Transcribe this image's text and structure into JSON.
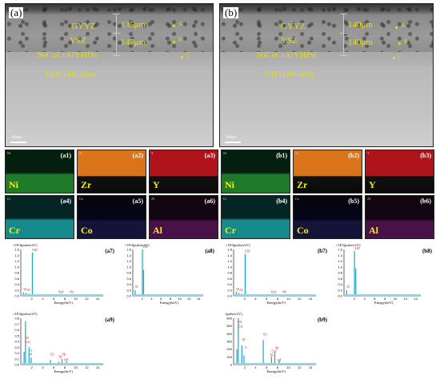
{
  "panels": {
    "a": {
      "label": "(a)",
      "gyyz": "GYYZ",
      "ysz": "YSZ",
      "bond": "NiCoCrAlYHfSi",
      "alloy": "GH5188-alloy",
      "t1": "135μm",
      "t2": "147μm",
      "pA": "A",
      "pB": "B",
      "pC": "C",
      "scale": "100μm"
    },
    "b": {
      "label": "(b)",
      "gyyz": "GYYZ",
      "ysz": "YSZ",
      "bond": "NiCoCrAlYHfSi",
      "alloy": "GH5188-alloy",
      "t1": "140μm",
      "t2": "140μm",
      "pA": "A",
      "pB": "B",
      "pC": "C",
      "scale": "100μm"
    }
  },
  "maps": [
    {
      "id": "a1",
      "el": "Ni",
      "tag": "(a1)",
      "small": "Ni",
      "color": "#1f7a2a"
    },
    {
      "id": "a2",
      "el": "Zr",
      "tag": "(a2)",
      "small": "Zr",
      "color": "#d9741a"
    },
    {
      "id": "a3",
      "el": "Y",
      "tag": "(a3)",
      "small": "Y",
      "color": "#b0141a"
    },
    {
      "id": "a4",
      "el": "Cr",
      "tag": "(a4)",
      "small": "Cr",
      "color": "#168a8c"
    },
    {
      "id": "a5",
      "el": "Co",
      "tag": "(a5)",
      "small": "Co",
      "color": "#12122a"
    },
    {
      "id": "a6",
      "el": "Al",
      "tag": "(a6)",
      "small": "Al",
      "color": "#4a1048"
    },
    {
      "id": "b1",
      "el": "Ni",
      "tag": "(b1)",
      "small": "Ni",
      "color": "#1f7a2a"
    },
    {
      "id": "b2",
      "el": "Zr",
      "tag": "(b2)",
      "small": "Zr",
      "color": "#d9741a"
    },
    {
      "id": "b3",
      "el": "Y",
      "tag": "(b3)",
      "small": "Y",
      "color": "#b0141a"
    },
    {
      "id": "b4",
      "el": "Cr",
      "tag": "(b4)",
      "small": "Cr",
      "color": "#168a8c"
    },
    {
      "id": "b5",
      "el": "Co",
      "tag": "(b5)",
      "small": "Co",
      "color": "#12122a"
    },
    {
      "id": "b6",
      "el": "Al",
      "tag": "(b6)",
      "small": "Al",
      "color": "#4a1048"
    }
  ],
  "spectra": [
    {
      "id": "a7",
      "tag": "(a7)",
      "title": "×1E3(pulses/eV)",
      "xlabel": "Energy(keV)",
      "yticks": [
        "0.0",
        "0.2",
        "0.4",
        "0.6",
        "0.8",
        "1.0",
        "1.2",
        "1.4",
        "1.6"
      ],
      "xticks": [
        "2",
        "4",
        "6",
        "8",
        "10",
        "12",
        "14"
      ],
      "peaks": [
        {
          "x": 0.5,
          "y": 0.12
        },
        {
          "x": 0.9,
          "y": 0.1
        },
        {
          "x": 1.5,
          "y": 0.07
        },
        {
          "x": 2.1,
          "y": 1.5
        },
        {
          "x": 6.9,
          "y": 0.05
        },
        {
          "x": 8.8,
          "y": 0.04
        }
      ],
      "labels": [
        {
          "t": "YZr",
          "x": 2.0,
          "y": 1.55
        },
        {
          "t": "O",
          "x": 0.5,
          "y": 0.2
        },
        {
          "t": "Al",
          "x": 1.1,
          "y": 0.16
        },
        {
          "t": "Gd",
          "x": 6.8,
          "y": 0.1
        },
        {
          "t": "Yb",
          "x": 8.8,
          "y": 0.1
        }
      ]
    },
    {
      "id": "a8",
      "tag": "(a8)",
      "title": "×1E3(pulses/eV)",
      "xlabel": "Energy(keV)",
      "yticks": [
        "0.0",
        "0.2",
        "0.4",
        "0.6",
        "0.8",
        "1.0",
        "1.2",
        "1.4",
        "1.6"
      ],
      "xticks": [
        "2",
        "4",
        "6",
        "8",
        "10",
        "12",
        "14"
      ],
      "peaks": [
        {
          "x": 0.5,
          "y": 0.2
        },
        {
          "x": 2.05,
          "y": 1.6
        },
        {
          "x": 2.3,
          "y": 0.9
        }
      ],
      "labels": [
        {
          "t": "YZr",
          "x": 2.0,
          "y": 1.65
        },
        {
          "t": "O",
          "x": 0.5,
          "y": 0.28
        }
      ]
    },
    {
      "id": "a9",
      "tag": "(a9)",
      "title": "×1E3(pulses/eV)",
      "xlabel": "Energy(keV)",
      "yticks": [
        "0.0",
        "0.1",
        "0.2",
        "0.3",
        "0.4",
        "0.5",
        "0.6",
        "0.7",
        "0.8"
      ],
      "xticks": [
        "2",
        "4",
        "6",
        "8",
        "10",
        "12",
        "14"
      ],
      "peaks": [
        {
          "x": 0.6,
          "y": 0.22
        },
        {
          "x": 0.85,
          "y": 0.75
        },
        {
          "x": 1.5,
          "y": 0.3
        },
        {
          "x": 1.9,
          "y": 0.12
        },
        {
          "x": 5.4,
          "y": 0.08
        },
        {
          "x": 6.9,
          "y": 0.05
        },
        {
          "x": 7.5,
          "y": 0.1
        },
        {
          "x": 8.3,
          "y": 0.06
        }
      ],
      "labels": [
        {
          "t": "Ni",
          "x": 0.8,
          "y": 0.44
        },
        {
          "t": "Co",
          "x": 0.8,
          "y": 0.37
        },
        {
          "t": "Y",
          "x": 1.7,
          "y": 0.22
        },
        {
          "t": "Al",
          "x": 1.5,
          "y": 0.16
        },
        {
          "t": "Cr",
          "x": 5.4,
          "y": 0.16
        },
        {
          "t": "Si",
          "x": 6.9,
          "y": 0.12
        },
        {
          "t": "Ni",
          "x": 7.6,
          "y": 0.16
        },
        {
          "t": "Hf",
          "x": 7.9,
          "y": 0.06
        }
      ]
    },
    {
      "id": "b7",
      "tag": "(b7)",
      "title": "×1E3(pulses/eV)",
      "xlabel": "Energy(keV)",
      "yticks": [
        "0.0",
        "0.2",
        "0.4",
        "0.6",
        "0.8",
        "1.0",
        "1.2",
        "1.4",
        "1.6"
      ],
      "xticks": [
        "2",
        "4",
        "6",
        "8",
        "10",
        "12",
        "14"
      ],
      "peaks": [
        {
          "x": 0.5,
          "y": 0.14
        },
        {
          "x": 0.9,
          "y": 0.1
        },
        {
          "x": 1.5,
          "y": 0.07
        },
        {
          "x": 2.1,
          "y": 1.45
        },
        {
          "x": 6.9,
          "y": 0.05
        },
        {
          "x": 8.8,
          "y": 0.04
        }
      ],
      "labels": [
        {
          "t": "YZr",
          "x": 2.0,
          "y": 1.5
        },
        {
          "t": "O",
          "x": 0.5,
          "y": 0.2
        },
        {
          "t": "Al",
          "x": 1.1,
          "y": 0.16
        },
        {
          "t": "Gd",
          "x": 6.8,
          "y": 0.1
        },
        {
          "t": "Yb",
          "x": 8.8,
          "y": 0.1
        }
      ]
    },
    {
      "id": "b8",
      "tag": "(b8)",
      "title": "×1E3(pulses/eV)",
      "xlabel": "Energy(keV)",
      "yticks": [
        "0.0",
        "0.2",
        "0.4",
        "0.6",
        "0.8",
        "1.0",
        "1.2",
        "1.4",
        "1.6"
      ],
      "xticks": [
        "2",
        "4",
        "6",
        "8",
        "10",
        "12",
        "14"
      ],
      "peaks": [
        {
          "x": 0.5,
          "y": 0.2
        },
        {
          "x": 2.05,
          "y": 1.55
        },
        {
          "x": 2.3,
          "y": 0.95
        }
      ],
      "labels": [
        {
          "t": "YZr",
          "x": 2.0,
          "y": 1.6
        },
        {
          "t": "O",
          "x": 0.5,
          "y": 0.28
        }
      ]
    },
    {
      "id": "b9",
      "tag": "(b9)",
      "title": "(pulses/eV)",
      "xlabel": "Energy(keV)",
      "yticks": [
        "0",
        "100",
        "200",
        "300",
        "400",
        "500",
        "600"
      ],
      "xticks": [
        "2",
        "4",
        "6",
        "8",
        "10",
        "12",
        "14"
      ],
      "peaks": [
        {
          "x": 0.6,
          "y": 200
        },
        {
          "x": 0.85,
          "y": 600
        },
        {
          "x": 1.5,
          "y": 250
        },
        {
          "x": 1.9,
          "y": 120
        },
        {
          "x": 5.4,
          "y": 320
        },
        {
          "x": 6.9,
          "y": 100
        },
        {
          "x": 7.5,
          "y": 160
        },
        {
          "x": 8.3,
          "y": 50
        }
      ],
      "labels": [
        {
          "t": "Ni",
          "x": 0.8,
          "y": 540
        },
        {
          "t": "Co",
          "x": 0.8,
          "y": 480
        },
        {
          "t": "Al",
          "x": 1.5,
          "y": 310
        },
        {
          "t": "Y",
          "x": 2.0,
          "y": 200
        },
        {
          "t": "Cr",
          "x": 5.4,
          "y": 380
        },
        {
          "t": "Co",
          "x": 6.9,
          "y": 160
        },
        {
          "t": "Si",
          "x": 6.6,
          "y": 110
        },
        {
          "t": "Ni",
          "x": 7.6,
          "y": 200
        },
        {
          "t": "Hf",
          "x": 8.0,
          "y": 40
        }
      ]
    }
  ]
}
